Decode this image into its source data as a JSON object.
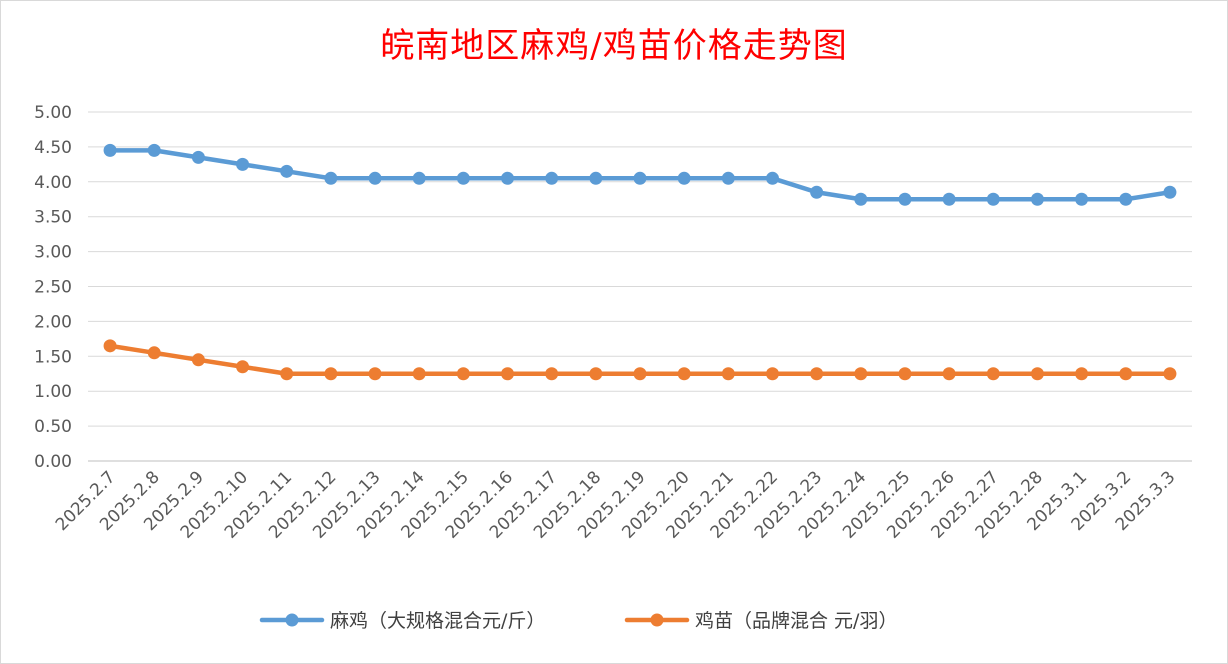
{
  "chart_data": {
    "type": "line",
    "title": "皖南地区麻鸡/鸡苗价格走势图",
    "categories": [
      "2025.2.7",
      "2025.2.8",
      "2025.2.9",
      "2025.2.10",
      "2025.2.11",
      "2025.2.12",
      "2025.2.13",
      "2025.2.14",
      "2025.2.15",
      "2025.2.16",
      "2025.2.17",
      "2025.2.18",
      "2025.2.19",
      "2025.2.20",
      "2025.2.21",
      "2025.2.22",
      "2025.2.23",
      "2025.2.24",
      "2025.2.25",
      "2025.2.26",
      "2025.2.27",
      "2025.2.28",
      "2025.3.1",
      "2025.3.2",
      "2025.3.3"
    ],
    "series": [
      {
        "name": "麻鸡（大规格混合元/斤）",
        "color": "#5b9bd5",
        "values": [
          4.45,
          4.45,
          4.35,
          4.25,
          4.15,
          4.05,
          4.05,
          4.05,
          4.05,
          4.05,
          4.05,
          4.05,
          4.05,
          4.05,
          4.05,
          4.05,
          3.85,
          3.75,
          3.75,
          3.75,
          3.75,
          3.75,
          3.75,
          3.75,
          3.85
        ]
      },
      {
        "name": "鸡苗（品牌混合 元/羽）",
        "color": "#ed7d31",
        "values": [
          1.65,
          1.55,
          1.45,
          1.35,
          1.25,
          1.25,
          1.25,
          1.25,
          1.25,
          1.25,
          1.25,
          1.25,
          1.25,
          1.25,
          1.25,
          1.25,
          1.25,
          1.25,
          1.25,
          1.25,
          1.25,
          1.25,
          1.25,
          1.25,
          1.25
        ]
      }
    ],
    "yticks": [
      "0.00",
      "0.50",
      "1.00",
      "1.50",
      "2.00",
      "2.50",
      "3.00",
      "3.50",
      "4.00",
      "4.50",
      "5.00"
    ],
    "ylim": [
      0,
      5
    ],
    "grid": true,
    "legend_position": "bottom"
  }
}
